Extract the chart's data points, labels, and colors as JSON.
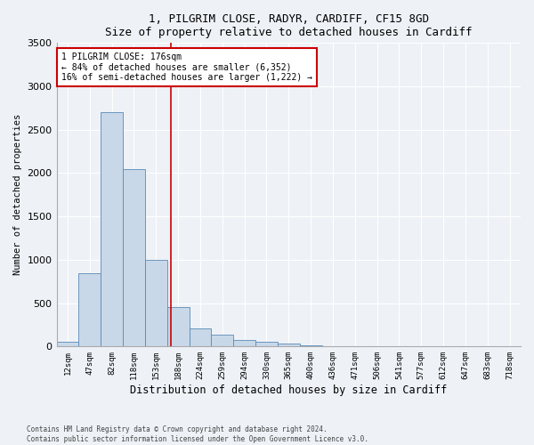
{
  "title1": "1, PILGRIM CLOSE, RADYR, CARDIFF, CF15 8GD",
  "title2": "Size of property relative to detached houses in Cardiff",
  "xlabel": "Distribution of detached houses by size in Cardiff",
  "ylabel": "Number of detached properties",
  "bar_labels": [
    "12sqm",
    "47sqm",
    "82sqm",
    "118sqm",
    "153sqm",
    "188sqm",
    "224sqm",
    "259sqm",
    "294sqm",
    "330sqm",
    "365sqm",
    "400sqm",
    "436sqm",
    "471sqm",
    "506sqm",
    "541sqm",
    "577sqm",
    "612sqm",
    "647sqm",
    "683sqm",
    "718sqm"
  ],
  "bar_values": [
    50,
    850,
    2700,
    2050,
    1000,
    450,
    210,
    135,
    75,
    55,
    35,
    15,
    8,
    5,
    3,
    2,
    1,
    1,
    1,
    0,
    0
  ],
  "bar_color": "#c8d8e8",
  "bar_edge_color": "#5a8ab8",
  "ylim": [
    0,
    3500
  ],
  "yticks": [
    0,
    500,
    1000,
    1500,
    2000,
    2500,
    3000,
    3500
  ],
  "annotation_line1": "1 PILGRIM CLOSE: 176sqm",
  "annotation_line2": "← 84% of detached houses are smaller (6,352)",
  "annotation_line3": "16% of semi-detached houses are larger (1,222) →",
  "vline_color": "#cc0000",
  "annotation_box_color": "#cc0000",
  "vline_x_index": 4.66,
  "footer1": "Contains HM Land Registry data © Crown copyright and database right 2024.",
  "footer2": "Contains public sector information licensed under the Open Government Licence v3.0.",
  "bg_color": "#eef2f7",
  "plot_bg_color": "#eef2f7"
}
